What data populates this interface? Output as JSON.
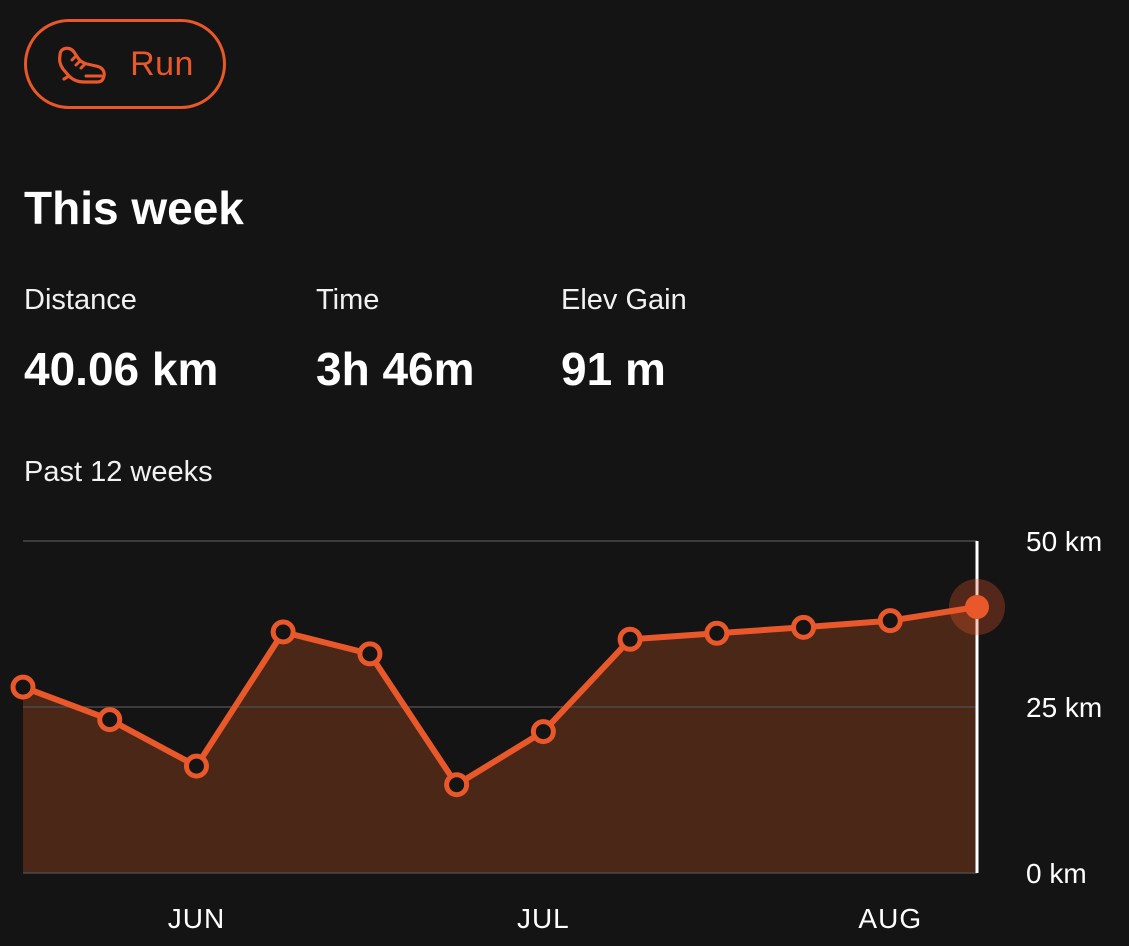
{
  "sport_filter": {
    "label": "Run",
    "icon": "running-shoe-icon"
  },
  "summary": {
    "title": "This week",
    "stats": [
      {
        "label": "Distance",
        "value": "40.06 km"
      },
      {
        "label": "Time",
        "value": "3h 46m"
      },
      {
        "label": "Elev Gain",
        "value": "91 m"
      }
    ]
  },
  "chart_section": {
    "label": "Past 12 weeks"
  },
  "colors": {
    "background": "#141414",
    "accent": "#e8582a",
    "area_fill": "#4a2716",
    "grid": "#4a4a4a"
  },
  "chart_data": {
    "type": "area",
    "title": "",
    "xlabel": "",
    "ylabel": "",
    "ylim": [
      0,
      50
    ],
    "y_ticks": [
      {
        "value": 0,
        "label": "0 km"
      },
      {
        "value": 25,
        "label": "25 km"
      },
      {
        "value": 50,
        "label": "50 km"
      }
    ],
    "x_tick_labels": [
      "JUN",
      "JUL",
      "AUG"
    ],
    "x_tick_positions": [
      2,
      6,
      10
    ],
    "grid": true,
    "y_axis_side": "right",
    "series": [
      {
        "values": [
          28.0,
          23.1,
          16.1,
          36.3,
          33.0,
          13.3,
          21.3,
          35.2,
          36.1,
          37.0,
          38.0,
          40.06
        ],
        "highlight_last": true
      }
    ]
  }
}
